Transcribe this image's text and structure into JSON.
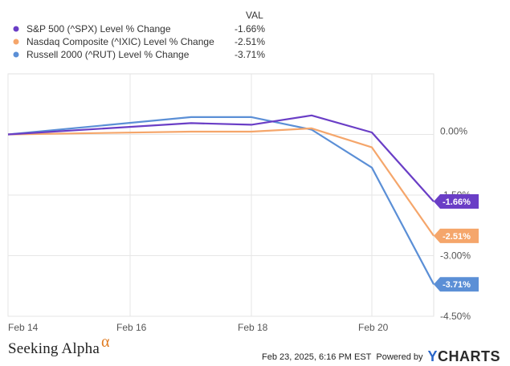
{
  "header": {
    "val_label": "VAL"
  },
  "chart_data": {
    "type": "line",
    "x": [
      "Feb 14",
      "Feb 17",
      "Feb 18",
      "Feb 19",
      "Feb 20",
      "Feb 21"
    ],
    "x_ticks": [
      "Feb 14",
      "Feb 16",
      "Feb 18",
      "Feb 20"
    ],
    "y_ticks": [
      "0.00%",
      "-1.50%",
      "-3.00%",
      "-4.50%"
    ],
    "y_tick_values": [
      0,
      -1.5,
      -3.0,
      -4.5
    ],
    "ylim": [
      -4.5,
      1.5
    ],
    "series": [
      {
        "name": "S&P 500 (^SPX) Level % Change",
        "color": "#6a3ec6",
        "value_label": "-1.66%",
        "values": [
          0.0,
          0.28,
          0.24,
          0.47,
          0.05,
          -1.66
        ]
      },
      {
        "name": "Nasdaq Composite (^IXIC) Level % Change",
        "color": "#f5a66b",
        "value_label": "-2.51%",
        "values": [
          0.0,
          0.07,
          0.07,
          0.15,
          -0.32,
          -2.51
        ]
      },
      {
        "name": "Russell 2000 (^RUT) Level % Change",
        "color": "#5b8fd6",
        "value_label": "-3.71%",
        "values": [
          0.0,
          0.43,
          0.43,
          0.12,
          -0.82,
          -3.71
        ]
      }
    ]
  },
  "footer": {
    "brand": "Seeking Alpha",
    "brand_mark": "α",
    "timestamp": "Feb 23, 2025, 6:16 PM EST",
    "powered_by": "Powered by",
    "provider": "YCHARTS",
    "provider_first": "Y",
    "provider_rest": "CHARTS"
  }
}
